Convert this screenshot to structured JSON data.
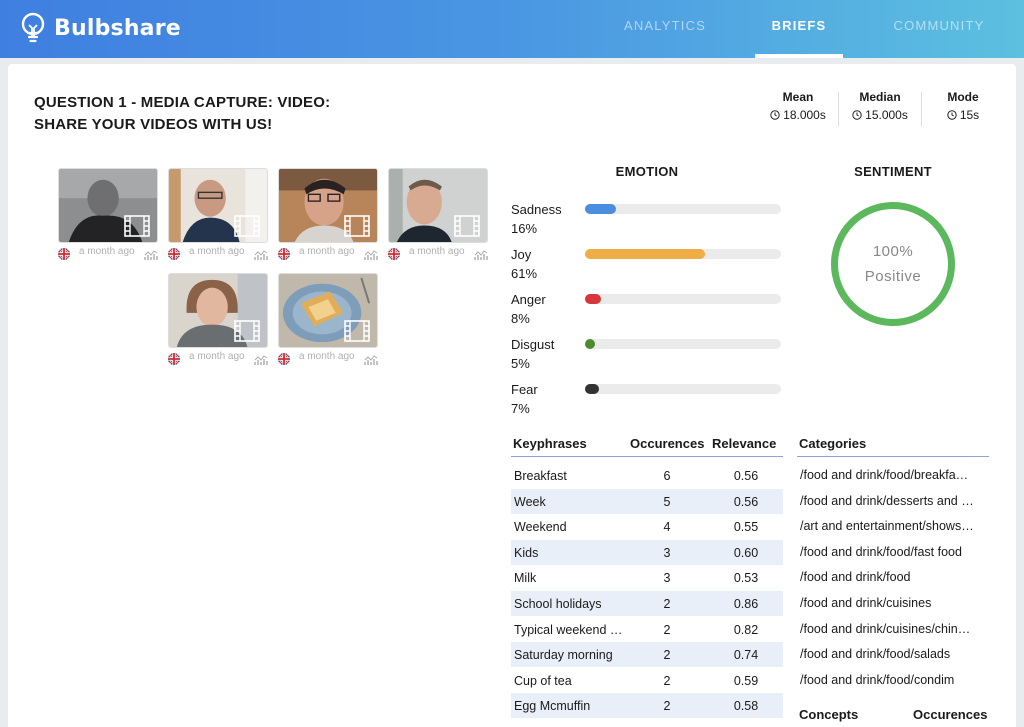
{
  "app": {
    "name": "Bulbshare"
  },
  "nav": {
    "analytics": "ANALYTICS",
    "briefs": "BRIEFS",
    "community": "COMMUNITY"
  },
  "question": {
    "line1": "QUESTION 1 - MEDIA CAPTURE: VIDEO:",
    "line2": "SHARE YOUR VIDEOS WITH US!"
  },
  "stats": {
    "mean": {
      "label": "Mean",
      "value": "18.000s"
    },
    "median": {
      "label": "Median",
      "value": "15.000s"
    },
    "mode": {
      "label": "Mode",
      "value": "15s"
    }
  },
  "videos": [
    {
      "time": "a month ago"
    },
    {
      "time": "a month ago"
    },
    {
      "time": "a month ago"
    },
    {
      "time": "a month ago"
    },
    {
      "time": "a month ago"
    },
    {
      "time": "a month ago"
    }
  ],
  "emotion": {
    "title": "EMOTION",
    "items": [
      {
        "name": "Sadness",
        "pct": "16%",
        "value": 0.16,
        "color": "#4a8ee0"
      },
      {
        "name": "Joy",
        "pct": "61%",
        "value": 0.61,
        "color": "#f0ad45"
      },
      {
        "name": "Anger",
        "pct": "8%",
        "value": 0.08,
        "color": "#d7363a"
      },
      {
        "name": "Disgust",
        "pct": "5%",
        "value": 0.05,
        "color": "#4e8a2e"
      },
      {
        "name": "Fear",
        "pct": "7%",
        "value": 0.07,
        "color": "#333333"
      }
    ]
  },
  "sentiment": {
    "title": "SENTIMENT",
    "pct": "100%",
    "label": "Positive",
    "color": "#5cb85c",
    "value": 1.0
  },
  "keyphrases": {
    "headers": {
      "phrase": "Keyphrases",
      "occ": "Occurences",
      "rel": "Relevance"
    },
    "rows": [
      {
        "phrase": "Breakfast",
        "occ": "6",
        "rel": "0.56"
      },
      {
        "phrase": "Week",
        "occ": "5",
        "rel": "0.56"
      },
      {
        "phrase": "Weekend",
        "occ": "4",
        "rel": "0.55"
      },
      {
        "phrase": "Kids",
        "occ": "3",
        "rel": "0.60"
      },
      {
        "phrase": "Milk",
        "occ": "3",
        "rel": "0.53"
      },
      {
        "phrase": "School holidays",
        "occ": "2",
        "rel": "0.86"
      },
      {
        "phrase": "Typical weekend …",
        "occ": "2",
        "rel": "0.82"
      },
      {
        "phrase": "Saturday morning",
        "occ": "2",
        "rel": "0.74"
      },
      {
        "phrase": "Cup of tea",
        "occ": "2",
        "rel": "0.59"
      },
      {
        "phrase": "Egg Mcmuffin",
        "occ": "2",
        "rel": "0.58"
      }
    ]
  },
  "categories": {
    "header": "Categories",
    "items": [
      "/food and drink/food/breakfa…",
      "/food and drink/desserts and …",
      "/art and entertainment/shows…",
      "/food and drink/food/fast food",
      "/food and drink/food",
      "/food and drink/cuisines",
      "/food and drink/cuisines/chin…",
      "/food and drink/food/salads",
      "/food and drink/food/condim"
    ]
  },
  "concepts": {
    "header": "Concepts",
    "occ": "Occurences"
  }
}
